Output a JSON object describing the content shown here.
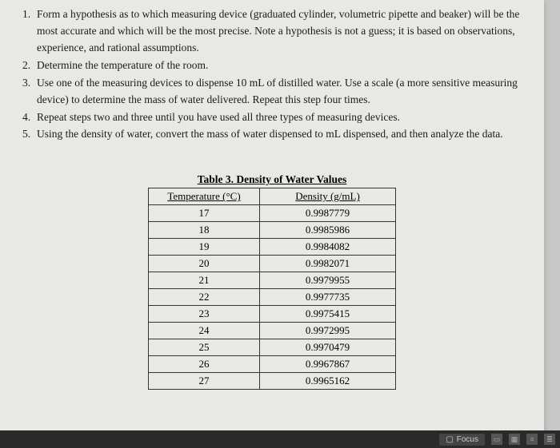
{
  "instructions": [
    {
      "num": "1.",
      "text": "Form a hypothesis as to which measuring device (graduated cylinder, volumetric pipette and beaker) will be the most accurate and which will be the most precise. Note a hypothesis is not a guess; it is based on observations, experience, and rational assumptions."
    },
    {
      "num": "2.",
      "text": "Determine the temperature of the room."
    },
    {
      "num": "3.",
      "text": "Use one of the measuring devices to dispense 10 mL of distilled water.  Use a scale (a more sensitive measuring device) to determine the mass of water delivered.  Repeat this step four times."
    },
    {
      "num": "4.",
      "text": "Repeat steps two and three until you have used all three types of measuring devices."
    },
    {
      "num": "5.",
      "text": "Using the density of water, convert the mass of water dispensed to mL dispensed, and then analyze the data."
    }
  ],
  "table": {
    "title": "Table 3.  Density of Water Values",
    "columns": [
      "Temperature (°C)",
      "Density (g/mL)"
    ],
    "rows": [
      [
        "17",
        "0.9987779"
      ],
      [
        "18",
        "0.9985986"
      ],
      [
        "19",
        "0.9984082"
      ],
      [
        "20",
        "0.9982071"
      ],
      [
        "21",
        "0.9979955"
      ],
      [
        "22",
        "0.9977735"
      ],
      [
        "23",
        "0.9975415"
      ],
      [
        "24",
        "0.9972995"
      ],
      [
        "25",
        "0.9970479"
      ],
      [
        "26",
        "0.9967867"
      ],
      [
        "27",
        "0.9965162"
      ]
    ],
    "border_color": "#333333",
    "background_color": "#e8e8e4",
    "font_size": 13
  },
  "toolbar": {
    "focus_label": "Focus"
  },
  "colors": {
    "page_bg": "#e8e8e4",
    "body_bg": "#c8c8c8",
    "text": "#1a1a1a",
    "bar_bg": "#2a2a2a"
  }
}
